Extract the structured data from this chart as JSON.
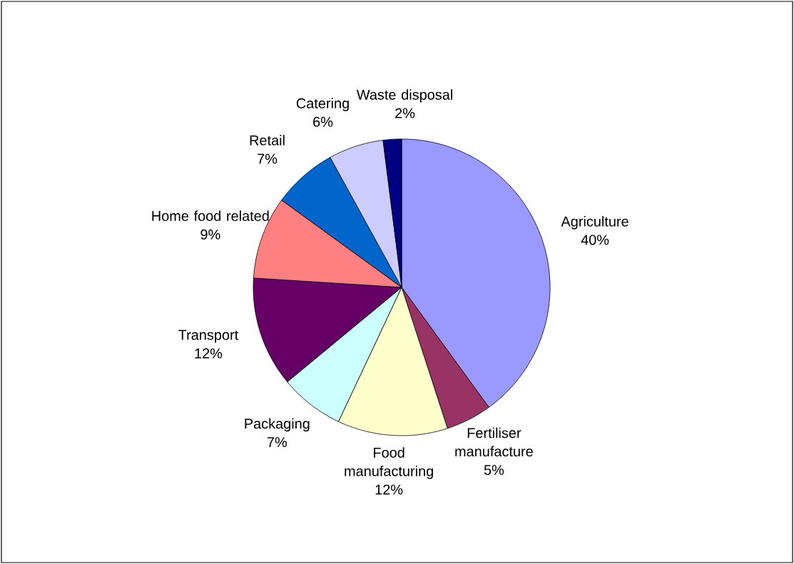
{
  "chart_data": {
    "type": "pie",
    "categories": [
      "Agriculture",
      "Fertiliser manufacture",
      "Food manufacturing",
      "Packaging",
      "Transport",
      "Home food related",
      "Retail",
      "Catering",
      "Waste disposal"
    ],
    "values": [
      40,
      5,
      12,
      7,
      12,
      9,
      7,
      6,
      2
    ],
    "value_labels": [
      "40%",
      "5%",
      "12%",
      "7%",
      "12%",
      "9%",
      "7%",
      "6%",
      "2%"
    ],
    "colors": [
      "#9999ff",
      "#993366",
      "#ffffcc",
      "#ccffff",
      "#660066",
      "#ff8080",
      "#0066cc",
      "#ccccff",
      "#000080"
    ]
  }
}
